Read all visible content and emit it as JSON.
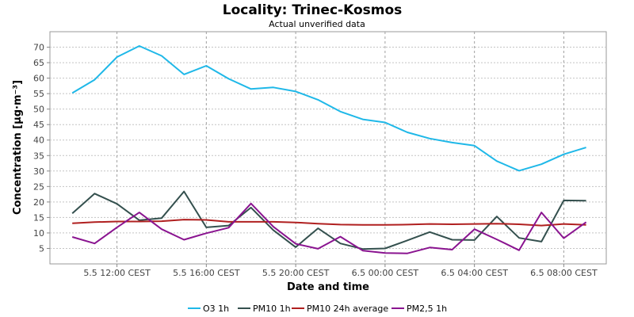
{
  "chart_data": {
    "type": "line",
    "title": "Locality: Trinec-Kosmos",
    "subtitle": "Actual unverified data",
    "xlabel": "Date and time",
    "ylabel": "Concentration [µg·m⁻³]",
    "ylim": [
      0,
      75
    ],
    "yticks": [
      5,
      10,
      15,
      20,
      25,
      30,
      35,
      40,
      45,
      50,
      55,
      60,
      65,
      70
    ],
    "xlim": [
      9.0,
      33.9
    ],
    "xticks": [
      {
        "x": 12,
        "label": "5.5 12:00 CEST"
      },
      {
        "x": 16,
        "label": "5.5 16:00 CEST"
      },
      {
        "x": 20,
        "label": "5.5 20:00 CEST"
      },
      {
        "x": 24,
        "label": "6.5 00:00 CEST"
      },
      {
        "x": 28,
        "label": "6.5 04:00 CEST"
      },
      {
        "x": 32,
        "label": "6.5 08:00 CEST"
      }
    ],
    "x": [
      10,
      11,
      12,
      13,
      14,
      15,
      16,
      17,
      18,
      19,
      20,
      21,
      22,
      23,
      24,
      25,
      26,
      27,
      28,
      29,
      30,
      31,
      32,
      33
    ],
    "grid": true,
    "legend_position": "bottom",
    "series": [
      {
        "name": "O3 1h",
        "color": "#1fb8e8",
        "values": [
          55.2,
          59.5,
          66.8,
          70.4,
          67.2,
          61.2,
          64.0,
          59.8,
          56.5,
          57.0,
          55.7,
          53.0,
          49.2,
          46.7,
          45.7,
          42.5,
          40.5,
          39.2,
          38.2,
          33.2,
          30.1,
          32.2,
          35.4,
          37.6
        ]
      },
      {
        "name": "PM10 1h",
        "color": "#34504e",
        "values": [
          16.3,
          22.7,
          19.4,
          14.1,
          14.8,
          23.4,
          11.8,
          12.4,
          18.2,
          10.9,
          5.4,
          11.5,
          6.6,
          4.8,
          5.0,
          7.6,
          10.3,
          7.8,
          7.7,
          15.3,
          8.4,
          7.2,
          20.5,
          20.4
        ]
      },
      {
        "name": "PM10 24h average",
        "color": "#b02020",
        "values": [
          13.1,
          13.5,
          13.7,
          13.7,
          13.8,
          14.3,
          14.2,
          13.6,
          13.6,
          13.6,
          13.4,
          13.0,
          12.7,
          12.6,
          12.6,
          12.7,
          12.9,
          12.8,
          12.9,
          13.0,
          12.8,
          12.4,
          12.9,
          12.6
        ]
      },
      {
        "name": "PM2,5 1h",
        "color": "#8a1490",
        "values": [
          8.7,
          6.6,
          11.8,
          16.6,
          11.2,
          7.8,
          9.9,
          11.7,
          19.5,
          12.0,
          6.5,
          4.9,
          8.8,
          4.3,
          3.5,
          3.4,
          5.3,
          4.6,
          11.2,
          7.9,
          4.4,
          16.6,
          8.3,
          13.5
        ]
      }
    ]
  }
}
